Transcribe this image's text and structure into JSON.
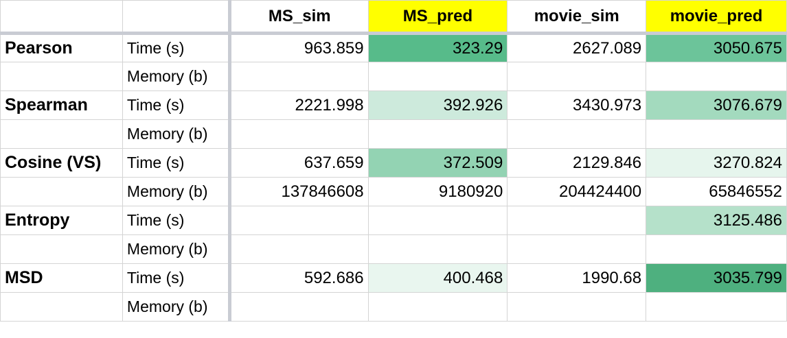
{
  "columns": [
    "",
    "",
    "MS_sim",
    "MS_pred",
    "movie_sim",
    "movie_pred"
  ],
  "header_highlight": "#ffff00",
  "rows": [
    {
      "metric": "Pearson",
      "label": "Time (s)",
      "cells": [
        {
          "value": "963.859"
        },
        {
          "value": "323.29",
          "bg": "#57bb8a"
        },
        {
          "value": "2627.089"
        },
        {
          "value": "3050.675",
          "bg": "#6cc49a"
        }
      ]
    },
    {
      "metric": "",
      "label": "Memory (b)",
      "cells": [
        {
          "value": ""
        },
        {
          "value": ""
        },
        {
          "value": ""
        },
        {
          "value": ""
        }
      ]
    },
    {
      "metric": "Spearman",
      "label": "Time (s)",
      "cells": [
        {
          "value": "2221.998"
        },
        {
          "value": "392.926",
          "bg": "#cdeadc"
        },
        {
          "value": "3430.973"
        },
        {
          "value": "3076.679",
          "bg": "#a3dabe"
        }
      ]
    },
    {
      "metric": "",
      "label": "Memory (b)",
      "cells": [
        {
          "value": ""
        },
        {
          "value": ""
        },
        {
          "value": ""
        },
        {
          "value": ""
        }
      ]
    },
    {
      "metric": "Cosine (VS)",
      "label": "Time (s)",
      "cells": [
        {
          "value": "637.659"
        },
        {
          "value": "372.509",
          "bg": "#93d3b3"
        },
        {
          "value": "2129.846"
        },
        {
          "value": "3270.824",
          "bg": "#e6f5ed"
        }
      ]
    },
    {
      "metric": "",
      "label": "Memory (b)",
      "cells": [
        {
          "value": "137846608"
        },
        {
          "value": "9180920"
        },
        {
          "value": "204424400"
        },
        {
          "value": "65846552"
        }
      ]
    },
    {
      "metric": "Entropy",
      "label": "Time (s)",
      "cells": [
        {
          "value": ""
        },
        {
          "value": ""
        },
        {
          "value": ""
        },
        {
          "value": "3125.486",
          "bg": "#b5e1ca"
        }
      ]
    },
    {
      "metric": "",
      "label": "Memory (b)",
      "cells": [
        {
          "value": ""
        },
        {
          "value": ""
        },
        {
          "value": ""
        },
        {
          "value": ""
        }
      ]
    },
    {
      "metric": "MSD",
      "label": "Time (s)",
      "cells": [
        {
          "value": "592.686"
        },
        {
          "value": "400.468",
          "bg": "#e9f6ef"
        },
        {
          "value": "1990.68"
        },
        {
          "value": "3035.799",
          "bg": "#4eb07f"
        }
      ]
    },
    {
      "metric": "",
      "label": "Memory (b)",
      "cells": [
        {
          "value": ""
        },
        {
          "value": ""
        },
        {
          "value": ""
        },
        {
          "value": ""
        }
      ]
    }
  ]
}
